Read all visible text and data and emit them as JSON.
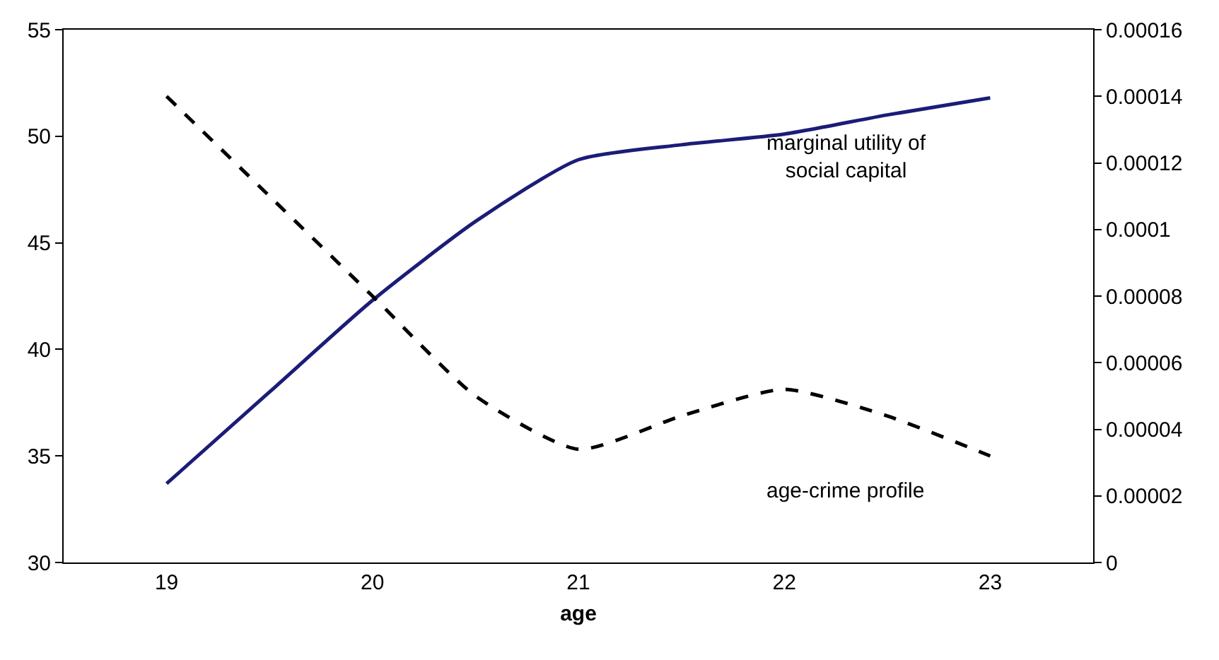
{
  "chart_data": {
    "type": "line",
    "xlabel": "age",
    "x": [
      19,
      19.5,
      20,
      20.5,
      21,
      21.5,
      22,
      22.5,
      23
    ],
    "xlim": [
      18.5,
      23.5
    ],
    "xticks": [
      19,
      20,
      21,
      22,
      23
    ],
    "ylim": [
      30,
      55
    ],
    "yticks": [
      30,
      35,
      40,
      45,
      50,
      55
    ],
    "y2lim": [
      0,
      0.00016
    ],
    "y2ticks": [
      0,
      {
        "value": 2e-05,
        "label": "0.00002"
      },
      {
        "value": 4e-05,
        "label": "0.00004"
      },
      {
        "value": 6e-05,
        "label": "0.00006"
      },
      {
        "value": 8e-05,
        "label": "0.00008"
      },
      0.0001,
      0.00012,
      0.00014,
      0.00016
    ],
    "grid": false,
    "legend": false,
    "marker": "none",
    "series": [
      {
        "name": "marginal utility of social capital",
        "color": "#1c1c78",
        "line_style": "solid",
        "values": [
          33.7,
          38.0,
          42.3,
          46.0,
          48.9,
          49.6,
          50.1,
          51.0,
          51.8
        ]
      },
      {
        "name": "age-crime profile",
        "color": "#000000",
        "line_style": "dashed",
        "axis": "y2",
        "values": [
          0.00014,
          0.00011,
          8e-05,
          5e-05,
          3.4e-05,
          4.4e-05,
          5.2e-05,
          4.4e-05,
          3.2e-05
        ]
      }
    ]
  }
}
